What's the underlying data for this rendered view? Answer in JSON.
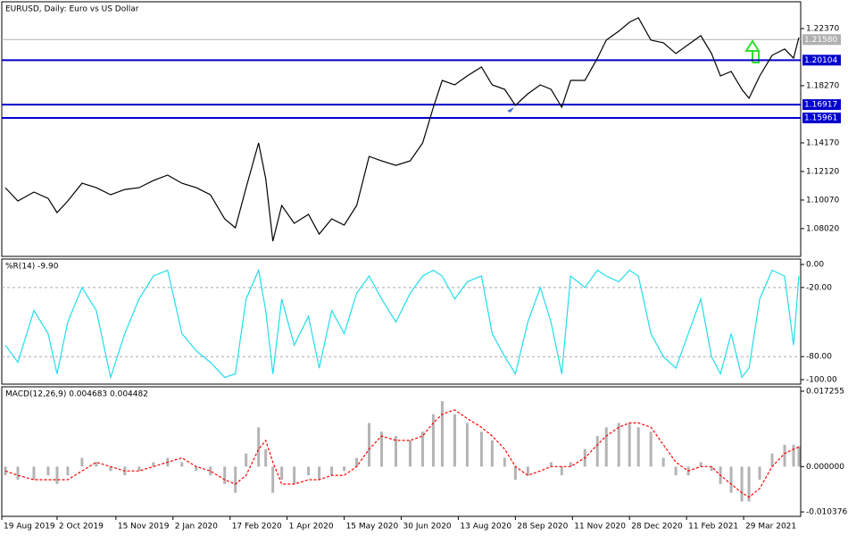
{
  "chart_data": [
    {
      "type": "line",
      "title": "EURUSD, Daily:  Euro vs US Dollar",
      "color": "#000000",
      "x": [
        2,
        9,
        18,
        26,
        31,
        37,
        45,
        53,
        61,
        69,
        77,
        85,
        93,
        101,
        109,
        117,
        125,
        131,
        137,
        144,
        148,
        152,
        157,
        164,
        172,
        178,
        185,
        192,
        199,
        206,
        213,
        221,
        229,
        236,
        242,
        247,
        254,
        261,
        269,
        275,
        282,
        288,
        295,
        302,
        308,
        314,
        319,
        327,
        334,
        339,
        346,
        352,
        357,
        364,
        371,
        378,
        385,
        392,
        398,
        403,
        409,
        415,
        419,
        425,
        432,
        439,
        444,
        447
      ],
      "values": [
        1.1096,
        1.1,
        1.1064,
        1.1019,
        1.0917,
        1.1,
        1.1128,
        1.1096,
        1.1045,
        1.1083,
        1.1096,
        1.1147,
        1.1186,
        1.1128,
        1.1096,
        1.1045,
        1.0872,
        1.0808,
        1.1096,
        1.1417,
        1.116,
        1.0712,
        1.0968,
        1.084,
        1.0904,
        1.0763,
        1.0872,
        1.0827,
        1.0968,
        1.132,
        1.1288,
        1.1256,
        1.1288,
        1.1417,
        1.1673,
        1.1865,
        1.1833,
        1.1897,
        1.1961,
        1.1833,
        1.1801,
        1.1686,
        1.1769,
        1.1833,
        1.1801,
        1.1673,
        1.1865,
        1.1865,
        1.2025,
        1.2154,
        1.2218,
        1.2282,
        1.2314,
        1.2154,
        1.2135,
        1.2058,
        1.2122,
        1.2186,
        1.2058,
        1.1897,
        1.1929,
        1.1801,
        1.1737,
        1.1897,
        1.2045,
        1.209,
        1.2025,
        1.2173
      ],
      "xlim": [
        0,
        448
      ],
      "ylim": [
        1.0603,
        1.2429
      ],
      "yticks": [
        {
          "value": 1.2237,
          "label": "1.22370"
        },
        {
          "value": 1.1827,
          "label": "1.18270"
        },
        {
          "value": 1.1417,
          "label": "1.14170"
        },
        {
          "value": 1.1212,
          "label": "1.12120"
        },
        {
          "value": 1.1007,
          "label": "1.10070"
        },
        {
          "value": 1.0802,
          "label": "1.08020"
        }
      ],
      "levels": [
        1.20104,
        1.16917,
        1.15961
      ],
      "level_color": "#0000cc",
      "current": {
        "value": 1.2158,
        "label": "1.21580"
      },
      "current_color": "#b0b0b0"
    },
    {
      "type": "line",
      "title": "%R(14) -9.90",
      "color": "#22dde8",
      "x": [
        2,
        9,
        18,
        26,
        31,
        37,
        45,
        53,
        61,
        69,
        77,
        85,
        93,
        101,
        109,
        117,
        125,
        131,
        137,
        144,
        148,
        152,
        157,
        164,
        172,
        178,
        185,
        192,
        199,
        206,
        213,
        221,
        229,
        236,
        242,
        247,
        254,
        261,
        269,
        275,
        282,
        288,
        295,
        302,
        308,
        314,
        319,
        327,
        334,
        339,
        346,
        352,
        357,
        364,
        371,
        378,
        385,
        392,
        398,
        403,
        409,
        415,
        419,
        425,
        432,
        439,
        444,
        447
      ],
      "values": [
        -70,
        -85,
        -40,
        -60,
        -95,
        -50,
        -20,
        -40,
        -98,
        -60,
        -30,
        -10,
        -5,
        -60,
        -75,
        -85,
        -98,
        -95,
        -30,
        -5,
        -40,
        -95,
        -30,
        -70,
        -45,
        -90,
        -40,
        -60,
        -25,
        -10,
        -30,
        -50,
        -25,
        -10,
        -5,
        -10,
        -30,
        -15,
        -10,
        -60,
        -80,
        -95,
        -50,
        -20,
        -50,
        -95,
        -10,
        -20,
        -5,
        -10,
        -15,
        -5,
        -10,
        -60,
        -80,
        -90,
        -60,
        -30,
        -80,
        -95,
        -60,
        -98,
        -90,
        -30,
        -5,
        -10,
        -70,
        -9.9
      ],
      "xlim": [
        0,
        448
      ],
      "ylim": [
        -103.9,
        4.7
      ],
      "yticks": [
        {
          "value": 0,
          "label": "0.00"
        },
        {
          "value": -20,
          "label": "-20.00"
        },
        {
          "value": -80,
          "label": "-80.00"
        },
        {
          "value": -100,
          "label": "-100.00"
        }
      ],
      "levels": [
        -20,
        -80
      ],
      "level_color": "#aaaaaa"
    },
    {
      "type": "macd",
      "title": "MACD(12,26,9) 0.004683 0.004482",
      "x": [
        2,
        9,
        18,
        26,
        31,
        37,
        45,
        53,
        61,
        69,
        77,
        85,
        93,
        101,
        109,
        117,
        125,
        131,
        137,
        144,
        148,
        152,
        157,
        164,
        172,
        178,
        185,
        192,
        199,
        206,
        213,
        221,
        229,
        236,
        242,
        247,
        254,
        261,
        269,
        275,
        282,
        288,
        295,
        302,
        308,
        314,
        319,
        327,
        334,
        339,
        346,
        352,
        357,
        364,
        371,
        378,
        385,
        392,
        398,
        403,
        409,
        415,
        419,
        425,
        432,
        439,
        444,
        447
      ],
      "series": [
        {
          "kind": "histogram",
          "color": "#b4b4b4",
          "values": [
            -0.002,
            -0.003,
            -0.003,
            -0.002,
            -0.004,
            -0.002,
            0.002,
            0.001,
            -0.001,
            -0.002,
            -0.001,
            0.001,
            0.002,
            0.001,
            -0.001,
            -0.002,
            -0.004,
            -0.006,
            0.003,
            0.009,
            0.004,
            -0.006,
            -0.003,
            -0.004,
            -0.002,
            -0.003,
            -0.002,
            -0.001,
            0.002,
            0.01,
            0.008,
            0.007,
            0.006,
            0.008,
            0.012,
            0.015,
            0.012,
            0.01,
            0.008,
            0.006,
            0.002,
            -0.003,
            -0.002,
            0.0,
            0.001,
            -0.002,
            0.001,
            0.004,
            0.007,
            0.009,
            0.01,
            0.01,
            0.009,
            0.008,
            0.002,
            -0.002,
            -0.002,
            0.001,
            -0.001,
            -0.004,
            -0.006,
            -0.008,
            -0.008,
            -0.003,
            0.003,
            0.005,
            0.005,
            0.004683
          ]
        },
        {
          "kind": "line",
          "color": "#ff0000",
          "values": [
            -0.001,
            -0.002,
            -0.003,
            -0.003,
            -0.003,
            -0.003,
            -0.001,
            0.001,
            0.0,
            -0.001,
            -0.001,
            0.0,
            0.001,
            0.002,
            0.0,
            -0.001,
            -0.003,
            -0.004,
            -0.002,
            0.004,
            0.006,
            0.001,
            -0.004,
            -0.004,
            -0.003,
            -0.003,
            -0.002,
            -0.002,
            0.0,
            0.004,
            0.007,
            0.006,
            0.006,
            0.007,
            0.01,
            0.012,
            0.013,
            0.011,
            0.009,
            0.007,
            0.004,
            0.0,
            -0.002,
            -0.001,
            0.0,
            0.0,
            0.0,
            0.002,
            0.005,
            0.007,
            0.009,
            0.01,
            0.01,
            0.009,
            0.005,
            0.001,
            -0.001,
            0.0,
            0.0,
            -0.002,
            -0.004,
            -0.006,
            -0.007,
            -0.005,
            0.0,
            0.003,
            0.004,
            0.004482
          ]
        }
      ],
      "xlim": [
        0,
        448
      ],
      "ylim": [
        -0.01139,
        0.01827
      ],
      "yticks": [
        0.017255,
        {
          "value": 0,
          "label": "0.000000"
        },
        -0.010376
      ],
      "xticks": [
        {
          "value": 0,
          "label": "19 Aug 2019"
        },
        {
          "value": 31,
          "label": "2 Oct 2019"
        },
        {
          "value": 64,
          "label": "15 Nov 2019"
        },
        {
          "value": 96,
          "label": "2 Jan 2020"
        },
        {
          "value": 128,
          "label": "17 Feb 2020"
        },
        {
          "value": 160,
          "label": "1 Apr 2020"
        },
        {
          "value": 192,
          "label": "15 May 2020"
        },
        {
          "value": 224,
          "label": "30 Jun 2020"
        },
        {
          "value": 256,
          "label": "13 Aug 2020"
        },
        {
          "value": 288,
          "label": "28 Sep 2020"
        },
        {
          "value": 320,
          "label": "11 Nov 2020"
        },
        {
          "value": 352,
          "label": "28 Dec 2020"
        },
        {
          "value": 384,
          "label": "11 Feb 2021"
        },
        {
          "value": 416,
          "label": "29 Mar 2021"
        }
      ]
    }
  ]
}
